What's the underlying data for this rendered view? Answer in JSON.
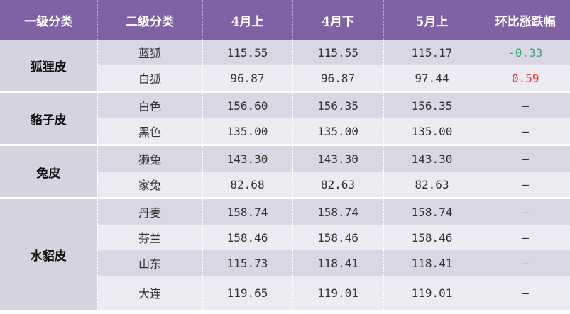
{
  "headers": [
    "一级分类",
    "二级分类",
    "4月上",
    "4月下",
    "5月上",
    "环比涨跌幅"
  ],
  "groups": [
    {
      "name": "狐狸皮",
      "rows": [
        [
          "蓝狐",
          "115.55",
          "115.55",
          "115.17",
          "-0.33"
        ],
        [
          "白狐",
          "96.87",
          "96.87",
          "97.44",
          "0.59"
        ]
      ]
    },
    {
      "name": "貉子皮",
      "rows": [
        [
          "白色",
          "156.60",
          "156.35",
          "156.35",
          "–"
        ],
        [
          "黑色",
          "135.00",
          "135.00",
          "135.00",
          "–"
        ]
      ]
    },
    {
      "name": "兔皮",
      "rows": [
        [
          "獭兔",
          "143.30",
          "143.30",
          "143.30",
          "–"
        ],
        [
          "家兔",
          "82.68",
          "82.63",
          "82.63",
          "–"
        ]
      ]
    },
    {
      "name": "水貂皮",
      "rows": [
        [
          "丹麦",
          "158.74",
          "158.74",
          "158.74",
          "–"
        ],
        [
          "芬兰",
          "158.46",
          "158.46",
          "158.46",
          "–"
        ],
        [
          "山东",
          "115.73",
          "118.41",
          "118.41",
          "–"
        ],
        [
          "大连",
          "119.65",
          "119.01",
          "119.01",
          "–"
        ]
      ]
    }
  ],
  "colors": {
    "header": "#7f62a4",
    "down": "#3aa66a",
    "up": "#e0303a"
  }
}
